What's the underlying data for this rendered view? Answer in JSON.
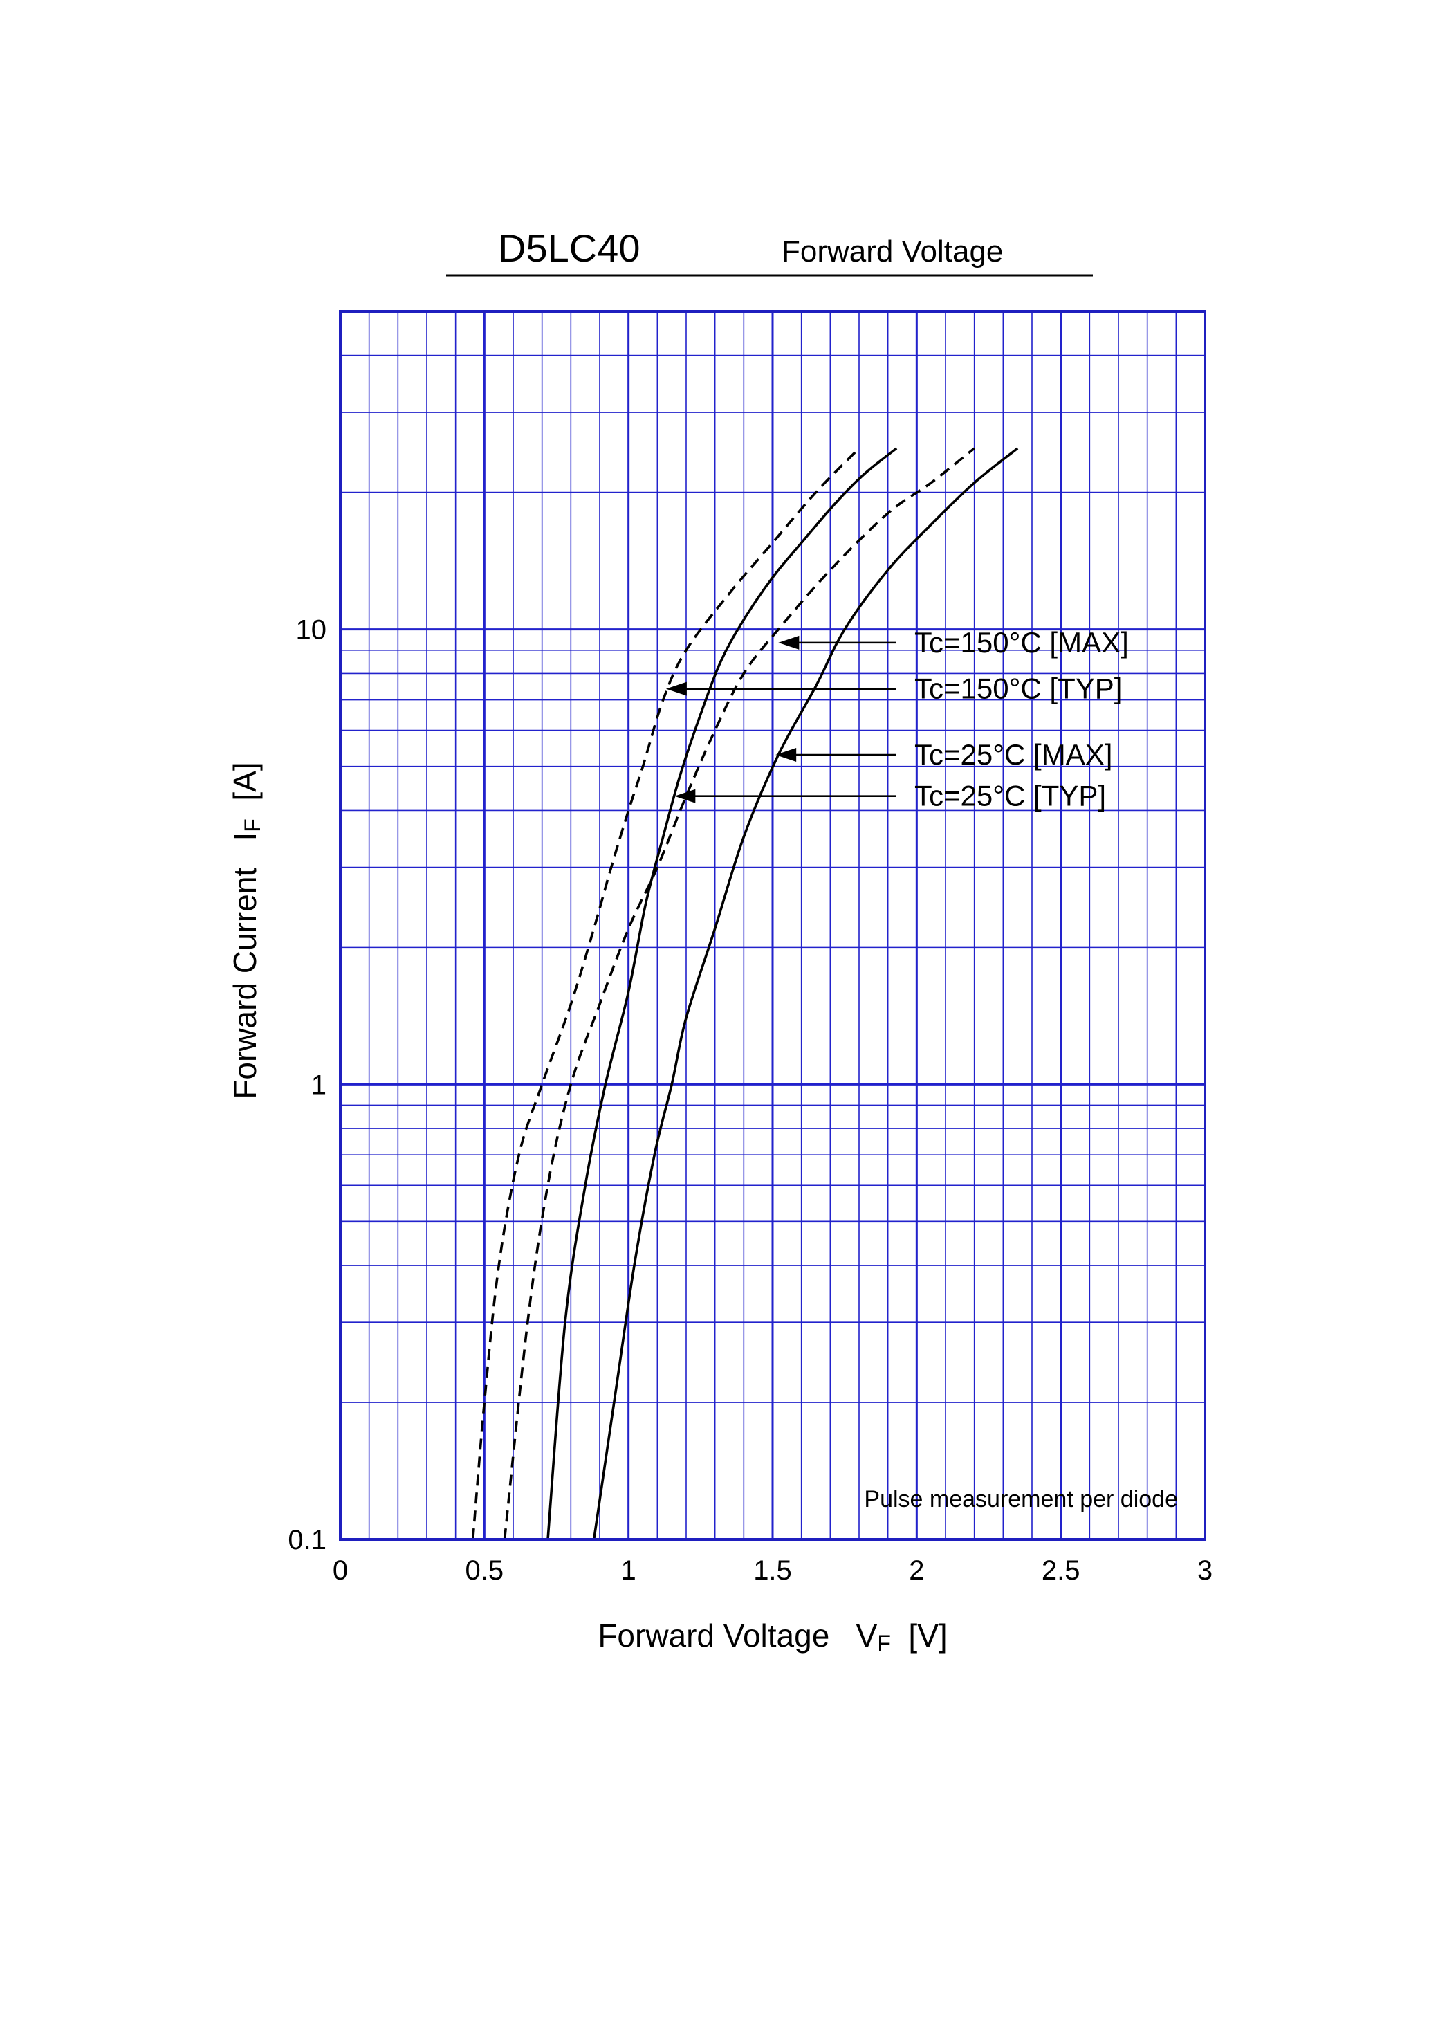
{
  "chart_data": {
    "type": "line",
    "model": "D5LC40",
    "title": "Forward Voltage",
    "xlabel": "Forward Voltage",
    "xlabel_symbol": "V",
    "xlabel_sub": "F",
    "xlabel_unit": "[V]",
    "ylabel": "Forward Current",
    "ylabel_symbol": "I",
    "ylabel_sub": "F",
    "ylabel_unit": "[A]",
    "xlim": [
      0,
      3
    ],
    "ylim": [
      0.1,
      50
    ],
    "yscale": "log",
    "grid": true,
    "x_ticks": [
      "0",
      "0.5",
      "1",
      "1.5",
      "2",
      "2.5",
      "3"
    ],
    "y_ticks": [
      "0.1",
      "1",
      "10"
    ],
    "note": "Pulse measurement per diode",
    "series": [
      {
        "name": "Tc=150°C [MAX]",
        "style": "dashed",
        "points": [
          [
            0.57,
            0.1
          ],
          [
            0.65,
            0.3
          ],
          [
            0.72,
            0.6
          ],
          [
            0.8,
            1.0
          ],
          [
            0.9,
            1.5
          ],
          [
            1.0,
            2.2
          ],
          [
            1.1,
            3.0
          ],
          [
            1.2,
            4.3
          ],
          [
            1.3,
            6.0
          ],
          [
            1.4,
            8.0
          ],
          [
            1.52,
            10.0
          ],
          [
            1.7,
            13.5
          ],
          [
            1.9,
            18.0
          ],
          [
            2.05,
            21.0
          ],
          [
            2.2,
            25.0
          ]
        ]
      },
      {
        "name": "Tc=150°C [TYP]",
        "style": "dashed",
        "points": [
          [
            0.46,
            0.1
          ],
          [
            0.5,
            0.2
          ],
          [
            0.55,
            0.4
          ],
          [
            0.62,
            0.7
          ],
          [
            0.7,
            1.0
          ],
          [
            0.8,
            1.5
          ],
          [
            0.88,
            2.2
          ],
          [
            0.94,
            3.0
          ],
          [
            1.0,
            4.0
          ],
          [
            1.05,
            5.0
          ],
          [
            1.12,
            7.0
          ],
          [
            1.2,
            9.0
          ],
          [
            1.35,
            12.0
          ],
          [
            1.5,
            15.5
          ],
          [
            1.65,
            20.0
          ],
          [
            1.8,
            25.0
          ]
        ]
      },
      {
        "name": "Tc=25°C [MAX]",
        "style": "solid",
        "points": [
          [
            0.88,
            0.1
          ],
          [
            0.95,
            0.2
          ],
          [
            1.02,
            0.4
          ],
          [
            1.09,
            0.7
          ],
          [
            1.15,
            1.0
          ],
          [
            1.2,
            1.4
          ],
          [
            1.3,
            2.2
          ],
          [
            1.4,
            3.5
          ],
          [
            1.52,
            5.3
          ],
          [
            1.65,
            7.5
          ],
          [
            1.75,
            10.0
          ],
          [
            1.9,
            13.5
          ],
          [
            2.05,
            17.0
          ],
          [
            2.2,
            21.0
          ],
          [
            2.35,
            25.0
          ]
        ]
      },
      {
        "name": "Tc=25°C [TYP]",
        "style": "solid",
        "points": [
          [
            0.72,
            0.1
          ],
          [
            0.78,
            0.3
          ],
          [
            0.85,
            0.6
          ],
          [
            0.92,
            1.0
          ],
          [
            1.0,
            1.6
          ],
          [
            1.06,
            2.5
          ],
          [
            1.12,
            3.5
          ],
          [
            1.18,
            4.8
          ],
          [
            1.25,
            6.5
          ],
          [
            1.32,
            8.5
          ],
          [
            1.4,
            10.5
          ],
          [
            1.5,
            13.0
          ],
          [
            1.6,
            15.5
          ],
          [
            1.72,
            19.0
          ],
          [
            1.82,
            22.0
          ],
          [
            1.93,
            25.0
          ]
        ]
      }
    ],
    "annotations": [
      {
        "text": "Tc=150°C [MAX]",
        "target": [
          1.52,
          9.35
        ]
      },
      {
        "text": "Tc=150°C [TYP]",
        "target": [
          1.13,
          7.4
        ]
      },
      {
        "text": "Tc=25°C [MAX]",
        "target": [
          1.51,
          5.3
        ]
      },
      {
        "text": "Tc=25°C [TYP]",
        "target": [
          1.16,
          4.3
        ]
      }
    ]
  }
}
